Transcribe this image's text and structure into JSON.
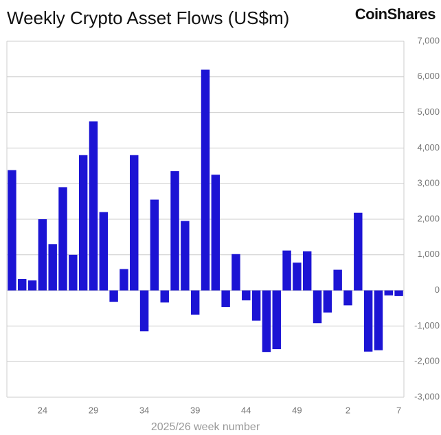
{
  "chart_data": {
    "type": "bar",
    "title": "Weekly Crypto Asset Flows (US$m)",
    "brand": "CoinShares",
    "x_label": "2025/26 week number",
    "color": "#1c14d4",
    "categories": [
      null,
      null,
      null,
      "24",
      null,
      null,
      null,
      null,
      "29",
      null,
      null,
      null,
      null,
      "34",
      null,
      null,
      null,
      null,
      "39",
      null,
      null,
      null,
      null,
      "44",
      null,
      null,
      null,
      null,
      "49",
      null,
      null,
      null,
      null,
      "2",
      null,
      null,
      null,
      null,
      "7"
    ],
    "values": [
      3380,
      320,
      280,
      2000,
      1300,
      2900,
      1000,
      3800,
      4750,
      2200,
      -320,
      600,
      3800,
      -1150,
      2550,
      -340,
      3350,
      1950,
      -680,
      6200,
      3250,
      -470,
      1020,
      -280,
      -850,
      -1730,
      -1650,
      1120,
      780,
      1100,
      -920,
      -620,
      580,
      -420,
      2180,
      -1720,
      -1680,
      -140,
      -160
    ],
    "ylim": [
      -3000,
      7000
    ],
    "yticks": [
      {
        "value": -3000,
        "label": "-3,000"
      },
      {
        "value": -2000,
        "label": "-2,000"
      },
      {
        "value": -1000,
        "label": "-1,000"
      },
      0,
      {
        "value": 1000,
        "label": "1,000"
      },
      {
        "value": 2000,
        "label": "2,000"
      },
      {
        "value": 3000,
        "label": "3,000"
      },
      {
        "value": 4000,
        "label": "4,000"
      },
      {
        "value": 5000,
        "label": "5,000"
      },
      {
        "value": 6000,
        "label": "6,000"
      },
      {
        "value": 7000,
        "label": "7,000"
      }
    ],
    "grid": true
  }
}
